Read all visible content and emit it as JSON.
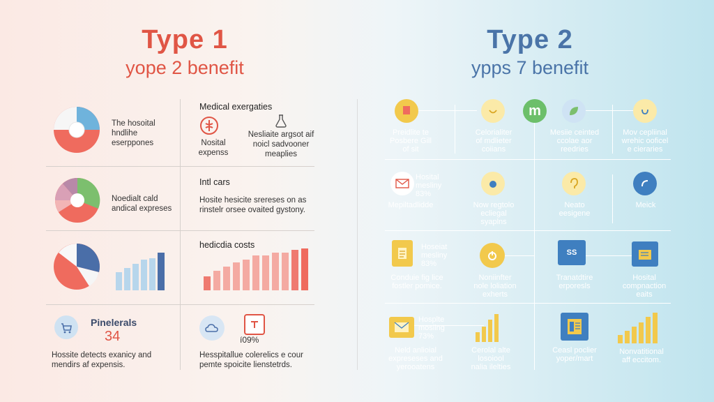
{
  "left": {
    "title": "Type 1",
    "subtitle": "yope 2 benefit",
    "colors": {
      "title": "#e05545",
      "red": "#ef6b5e",
      "blue": "#6fa8d8",
      "navy": "#4a6ea8",
      "green": "#7cbf6e",
      "pink": "#e8b0ba"
    },
    "row1_left_text": "The hosoital\nhndlihe\neserppones",
    "row1_right_head": "Medical exergaties",
    "row1_right_a": "Nosital\nexpenss",
    "row1_right_b": "Nesliaite argsot aif\nnoicl sadvooner\nmeaplies",
    "row2_left_text": "Noedialt cald\nandical expreses",
    "row2_right_head": "Intl cars",
    "row2_right_text": "Hosite hesicite srereses on as\nrinstelr orsee ovaited gystony.",
    "row3_right_head": "hedicdia costs",
    "row4_left_head": "Pinelerals",
    "row4_left_value": "34",
    "row4_left_text": "Hossite detects exanicy and\nmendirs af expensis.",
    "row4_right_value": "í09%",
    "row4_right_text": "Hesspitallue colerelics e cour\npemte spoicite lienstetrds."
  },
  "right": {
    "title": "Type 2",
    "subtitle": "ypps 7 benefit",
    "colors": {
      "title": "#4a74a8",
      "yellow": "#f2c94c",
      "green": "#6cbf6a",
      "blue": "#3f7fc0"
    },
    "r1": [
      "Preidlite te\nPosbere Gill\nof sit",
      "Celorialiter\nof mdlieter\ncoiians",
      "Mesiie ceinted\nccolae aor\nreedries",
      "Mov cepliinal\nwrehic ooficel\ne cieraries"
    ],
    "r2": [
      "Hosital\nmesliny\n83%",
      "Mepiltadlidde",
      "Now regtolo\necliegal\nsyaplns",
      "Neato\neesigene",
      "Meick"
    ],
    "r3": [
      "Hoseiat\nmesliny\n83%",
      "Conduie fig lice\nfostler pomice.",
      "Noniinfter\nnole loliation\nexherts",
      "Tranatdtire\nerporesls",
      "Hosital\ncompnaction\neaits"
    ],
    "r4": [
      "Hosplte\nmosiing\n73%",
      "Neld anlioial\nexpreseses and\nyerooatens",
      "Cerolal alte\nlosoiool\nnalia ilelties",
      "Ceasl poclier\nyoper/mart",
      "Nonvatitional\naff eccitom."
    ]
  }
}
